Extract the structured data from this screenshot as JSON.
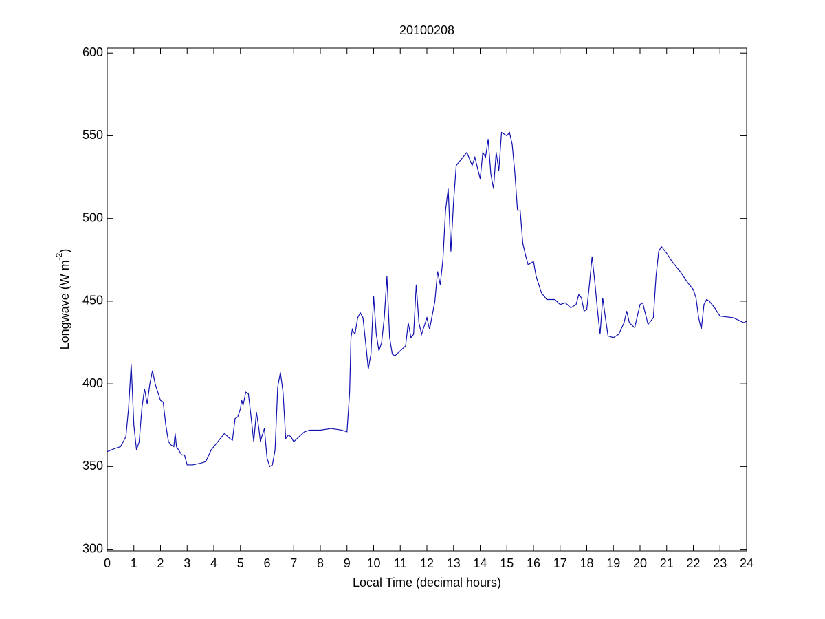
{
  "chart_data": {
    "type": "line",
    "title": "20100208",
    "xlabel": "Local Time (decimal hours)",
    "ylabel": {
      "text": "Longwave (W m",
      "superscript": "-2",
      "end": ")"
    },
    "x": [
      0,
      0.3,
      0.5,
      0.7,
      0.8,
      0.9,
      1.0,
      1.1,
      1.2,
      1.3,
      1.4,
      1.5,
      1.6,
      1.7,
      1.8,
      1.9,
      2.0,
      2.1,
      2.2,
      2.3,
      2.4,
      2.5,
      2.55,
      2.6,
      2.8,
      2.9,
      3.0,
      3.2,
      3.5,
      3.7,
      3.9,
      4.1,
      4.3,
      4.4,
      4.6,
      4.7,
      4.8,
      4.9,
      5.0,
      5.05,
      5.1,
      5.2,
      5.3,
      5.4,
      5.5,
      5.6,
      5.7,
      5.75,
      5.8,
      5.9,
      6.0,
      6.1,
      6.2,
      6.3,
      6.4,
      6.5,
      6.6,
      6.7,
      6.8,
      6.9,
      7.0,
      7.2,
      7.4,
      7.6,
      8.0,
      8.4,
      8.8,
      9.0,
      9.1,
      9.15,
      9.2,
      9.3,
      9.4,
      9.5,
      9.6,
      9.7,
      9.8,
      9.9,
      10.0,
      10.1,
      10.2,
      10.3,
      10.4,
      10.5,
      10.6,
      10.7,
      10.8,
      11.0,
      11.2,
      11.3,
      11.4,
      11.5,
      11.6,
      11.7,
      11.8,
      12.0,
      12.1,
      12.3,
      12.4,
      12.5,
      12.6,
      12.7,
      12.8,
      12.9,
      13.0,
      13.1,
      13.2,
      13.3,
      13.5,
      13.7,
      13.8,
      14.0,
      14.1,
      14.2,
      14.3,
      14.4,
      14.5,
      14.6,
      14.7,
      14.8,
      15.0,
      15.1,
      15.2,
      15.3,
      15.4,
      15.5,
      15.6,
      15.7,
      15.8,
      16.0,
      16.1,
      16.2,
      16.3,
      16.5,
      16.8,
      17.0,
      17.2,
      17.4,
      17.6,
      17.7,
      17.8,
      17.9,
      18.0,
      18.1,
      18.2,
      18.3,
      18.4,
      18.5,
      18.6,
      18.7,
      18.8,
      19.0,
      19.2,
      19.4,
      19.5,
      19.6,
      19.8,
      20.0,
      20.1,
      20.3,
      20.5,
      20.6,
      20.7,
      20.8,
      21.0,
      21.2,
      21.5,
      21.8,
      22.0,
      22.1,
      22.2,
      22.3,
      22.4,
      22.5,
      22.6,
      22.8,
      23.0,
      23.5,
      23.9,
      24.0
    ],
    "series": [
      {
        "color": "#1010b0",
        "values": [
          359,
          361,
          362,
          368,
          385,
          412,
          375,
          360,
          365,
          385,
          397,
          388,
          400,
          408,
          400,
          395,
          390,
          389,
          375,
          365,
          363,
          362,
          370,
          362,
          357,
          357,
          351,
          351,
          352,
          353,
          360,
          364,
          368,
          370,
          367,
          366,
          379,
          380,
          385,
          390,
          387,
          395,
          394,
          380,
          365,
          383,
          372,
          365,
          368,
          373,
          355,
          350,
          351,
          360,
          398,
          407,
          395,
          367,
          369,
          368,
          365,
          368,
          371,
          372,
          372,
          373,
          372,
          371,
          395,
          428,
          433,
          430,
          440,
          443,
          440,
          425,
          409,
          418,
          453,
          430,
          420,
          425,
          440,
          465,
          428,
          418,
          417,
          420,
          423,
          437,
          428,
          430,
          460,
          437,
          430,
          440,
          433,
          450,
          468,
          460,
          475,
          505,
          518,
          480,
          510,
          532,
          534,
          536,
          540,
          532,
          537,
          524,
          540,
          537,
          548,
          527,
          518,
          540,
          529,
          552,
          550,
          552,
          545,
          528,
          505,
          505,
          485,
          478,
          472,
          474,
          465,
          460,
          455,
          451,
          451,
          448,
          449,
          446,
          448,
          454,
          452,
          444,
          445,
          460,
          477,
          462,
          445,
          430,
          452,
          440,
          429,
          428,
          430,
          437,
          444,
          437,
          434,
          448,
          449,
          436,
          440,
          465,
          480,
          483,
          479,
          474,
          468,
          461,
          457,
          452,
          440,
          433,
          448,
          451,
          450,
          446,
          441,
          440,
          437,
          438
        ]
      }
    ],
    "xlim": [
      0,
      24
    ],
    "ylim": [
      299,
      603
    ],
    "xticks": [
      0,
      1,
      2,
      3,
      4,
      5,
      6,
      7,
      8,
      9,
      10,
      11,
      12,
      13,
      14,
      15,
      16,
      17,
      18,
      19,
      20,
      21,
      22,
      23,
      24
    ],
    "yticks": [
      300,
      350,
      400,
      450,
      500,
      550,
      600
    ]
  }
}
